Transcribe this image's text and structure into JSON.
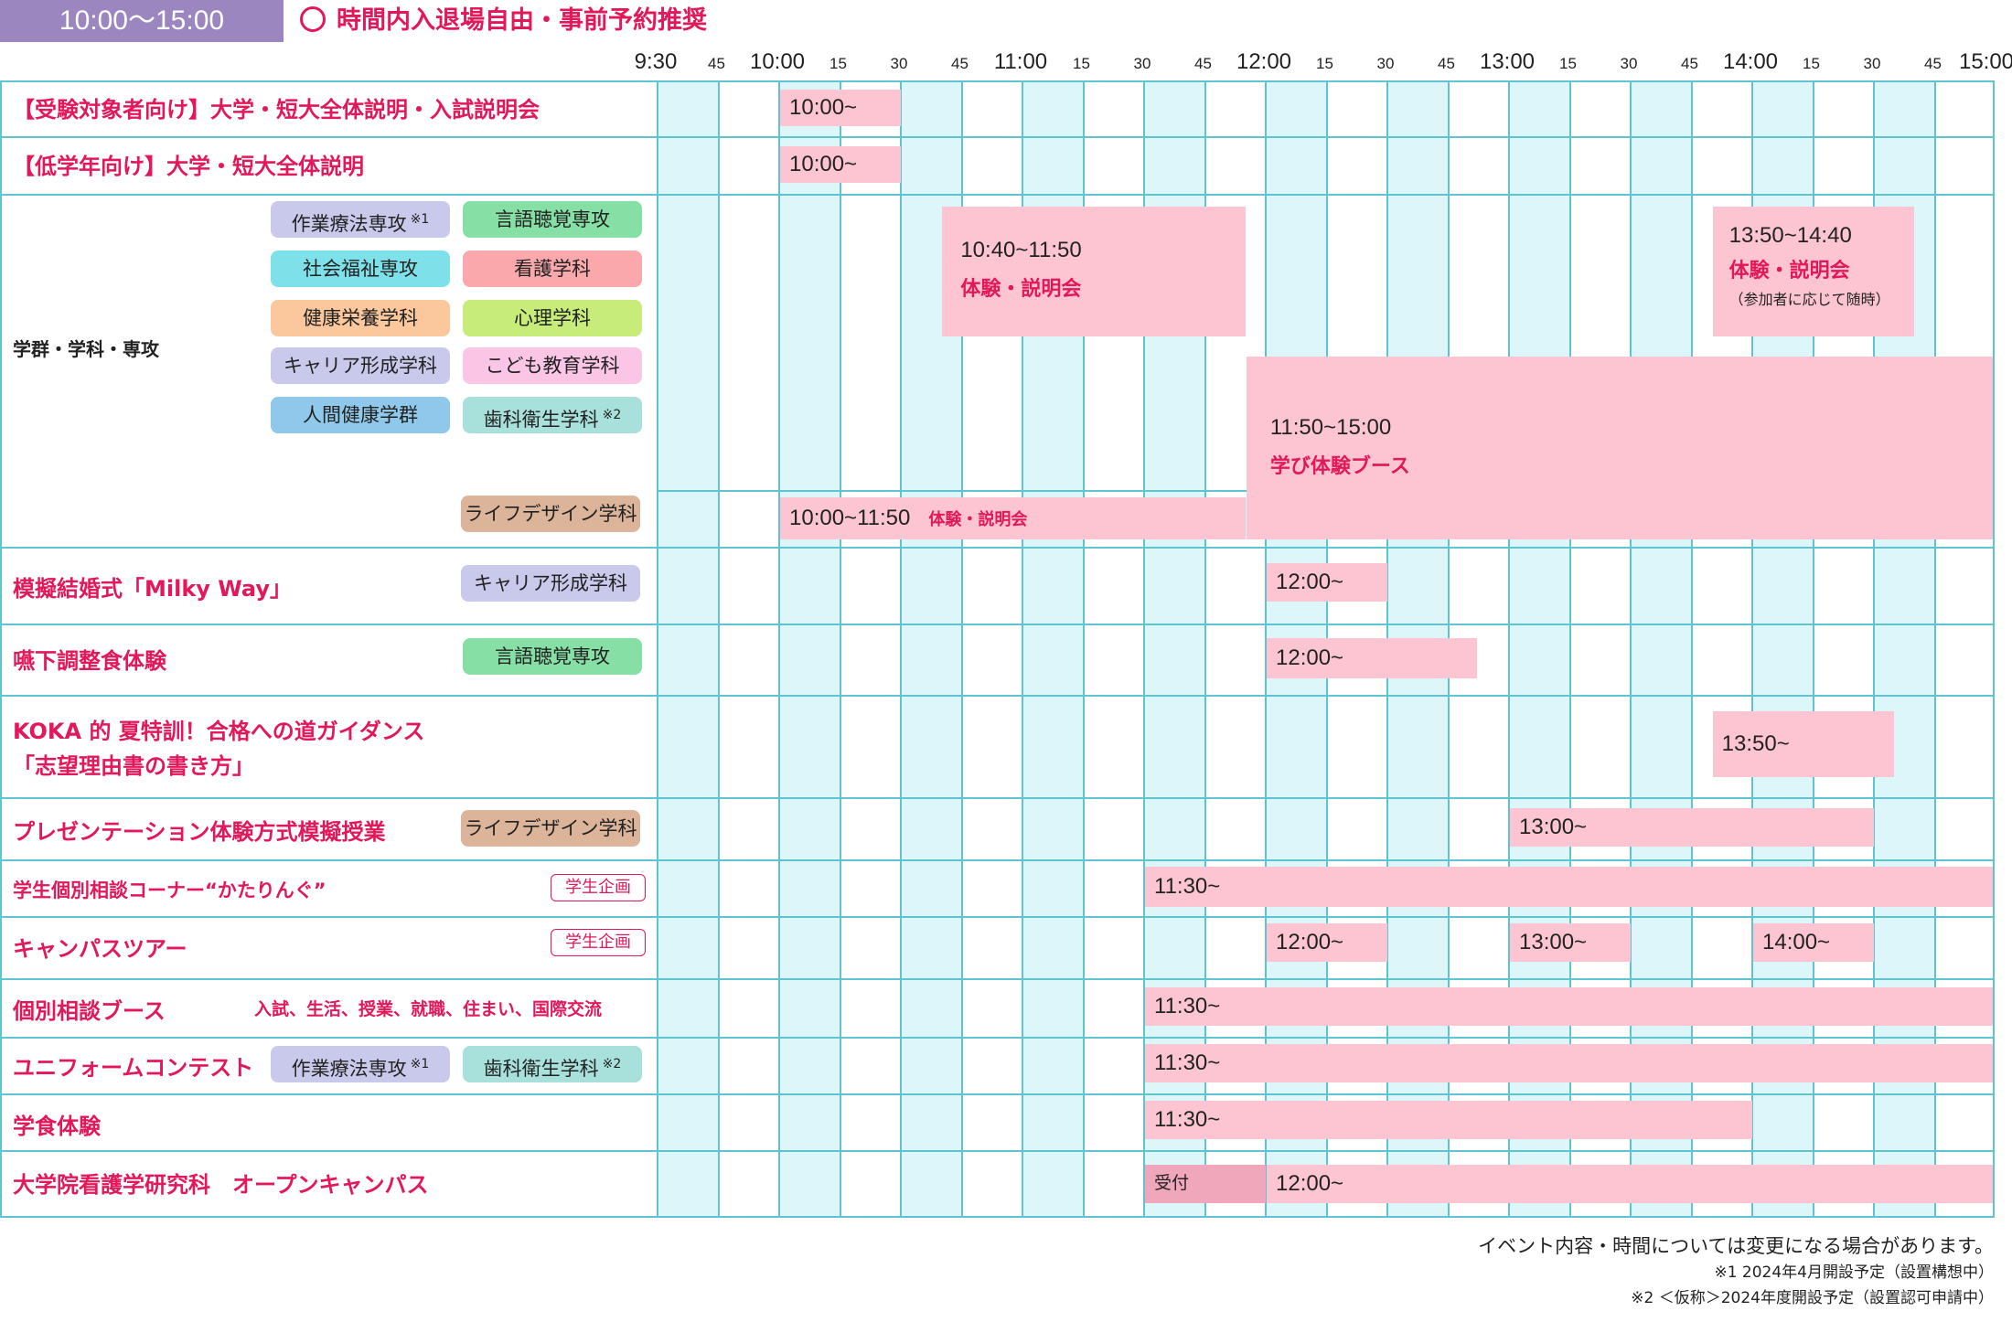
{
  "header": {
    "time_range": "10:00～15:00",
    "note": "時間内入退場自由・事前予約推奨",
    "accent": "#e2185a",
    "header_bg": "#9b86c0"
  },
  "timeline": {
    "ticks": [
      "9:30",
      "45",
      "10:00",
      "15",
      "30",
      "45",
      "11:00",
      "15",
      "30",
      "45",
      "12:00",
      "15",
      "30",
      "45",
      "13:00",
      "15",
      "30",
      "45",
      "14:00",
      "15",
      "30",
      "45",
      "15:00"
    ],
    "start": "9:30",
    "end": "15:00",
    "slot_minutes": 15
  },
  "rows": {
    "r1": {
      "title": "【受験対象者向け】大学・短大全体説明・入試説明会",
      "time": "10:00~"
    },
    "r2": {
      "title": "【低学年向け】大学・短大全体説明",
      "time": "10:00~"
    },
    "r3": {
      "title": "学群・学科・専攻",
      "chips": {
        "c1": {
          "label": "作業療法専攻",
          "note": "※1",
          "color": "#c9c9ec"
        },
        "c2": {
          "label": "言語聴覚専攻",
          "color": "#86e0a6"
        },
        "c3": {
          "label": "社会福祉専攻",
          "color": "#7ee1ea"
        },
        "c4": {
          "label": "看護学科",
          "color": "#fba8ad"
        },
        "c5": {
          "label": "健康栄養学科",
          "color": "#fbc79c"
        },
        "c6": {
          "label": "心理学科",
          "color": "#c8ec7a"
        },
        "c7": {
          "label": "キャリア形成学科",
          "color": "#c9c9ec"
        },
        "c8": {
          "label": "こども教育学科",
          "color": "#fbc6e6"
        },
        "c9": {
          "label": "人間健康学群",
          "color": "#8fc8ea"
        },
        "c10": {
          "label": "歯科衛生学科",
          "note": "※2",
          "color": "#a8e1dc"
        },
        "c11": {
          "label": "ライフデザイン学科",
          "color": "#dcb49a"
        }
      },
      "bars": {
        "b1": {
          "time": "10:40~11:50",
          "title": "体験・説明会"
        },
        "b2": {
          "time": "13:50~14:40",
          "title": "体験・説明会",
          "sub": "（参加者に応じて随時）"
        },
        "b3": {
          "time": "11:50~15:00",
          "title": "学び体験ブース"
        },
        "b4": {
          "time": "10:00~11:50",
          "title": "体験・説明会"
        }
      }
    },
    "r4": {
      "title": "模擬結婚式「Milky Way」",
      "chip": "キャリア形成学科",
      "time": "12:00~"
    },
    "r5": {
      "title": "嚥下調整食体験",
      "chip": "言語聴覚専攻",
      "time": "12:00~"
    },
    "r6": {
      "title1": "KOKA 的 夏特訓！合格への道ガイダンス",
      "title2": "「志望理由書の書き方」",
      "time": "13:50~"
    },
    "r7": {
      "title": "プレゼンテーション体験方式模擬授業",
      "chip": "ライフデザイン学科",
      "time": "13:00~"
    },
    "r8": {
      "title": "学生個別相談コーナー“かたりんぐ”",
      "tag": "学生企画",
      "time": "11:30~"
    },
    "r9": {
      "title": "キャンパスツアー",
      "tag": "学生企画",
      "times": [
        "12:00~",
        "13:00~",
        "14:00~"
      ]
    },
    "r10": {
      "title": "個別相談ブース",
      "sub": "入試、生活、授業、就職、住まい、国際交流",
      "time": "11:30~"
    },
    "r11": {
      "title": "ユニフォームコンテスト",
      "chip1": "作業療法専攻",
      "note1": "※1",
      "chip2": "歯科衛生学科",
      "note2": "※2",
      "time": "11:30~"
    },
    "r12": {
      "title": "学食体験",
      "time": "11:30~"
    },
    "r13": {
      "title": "大学院看護学研究科　オープンキャンパス",
      "reception": "受付",
      "time": "12:00~"
    }
  },
  "footer": {
    "line1": "イベント内容・時間については変更になる場合があります。",
    "line2": "※1  2024年4月開設予定（設置構想中）",
    "line3": "※2 ＜仮称＞2024年度開設予定（設置認可申請中）"
  }
}
